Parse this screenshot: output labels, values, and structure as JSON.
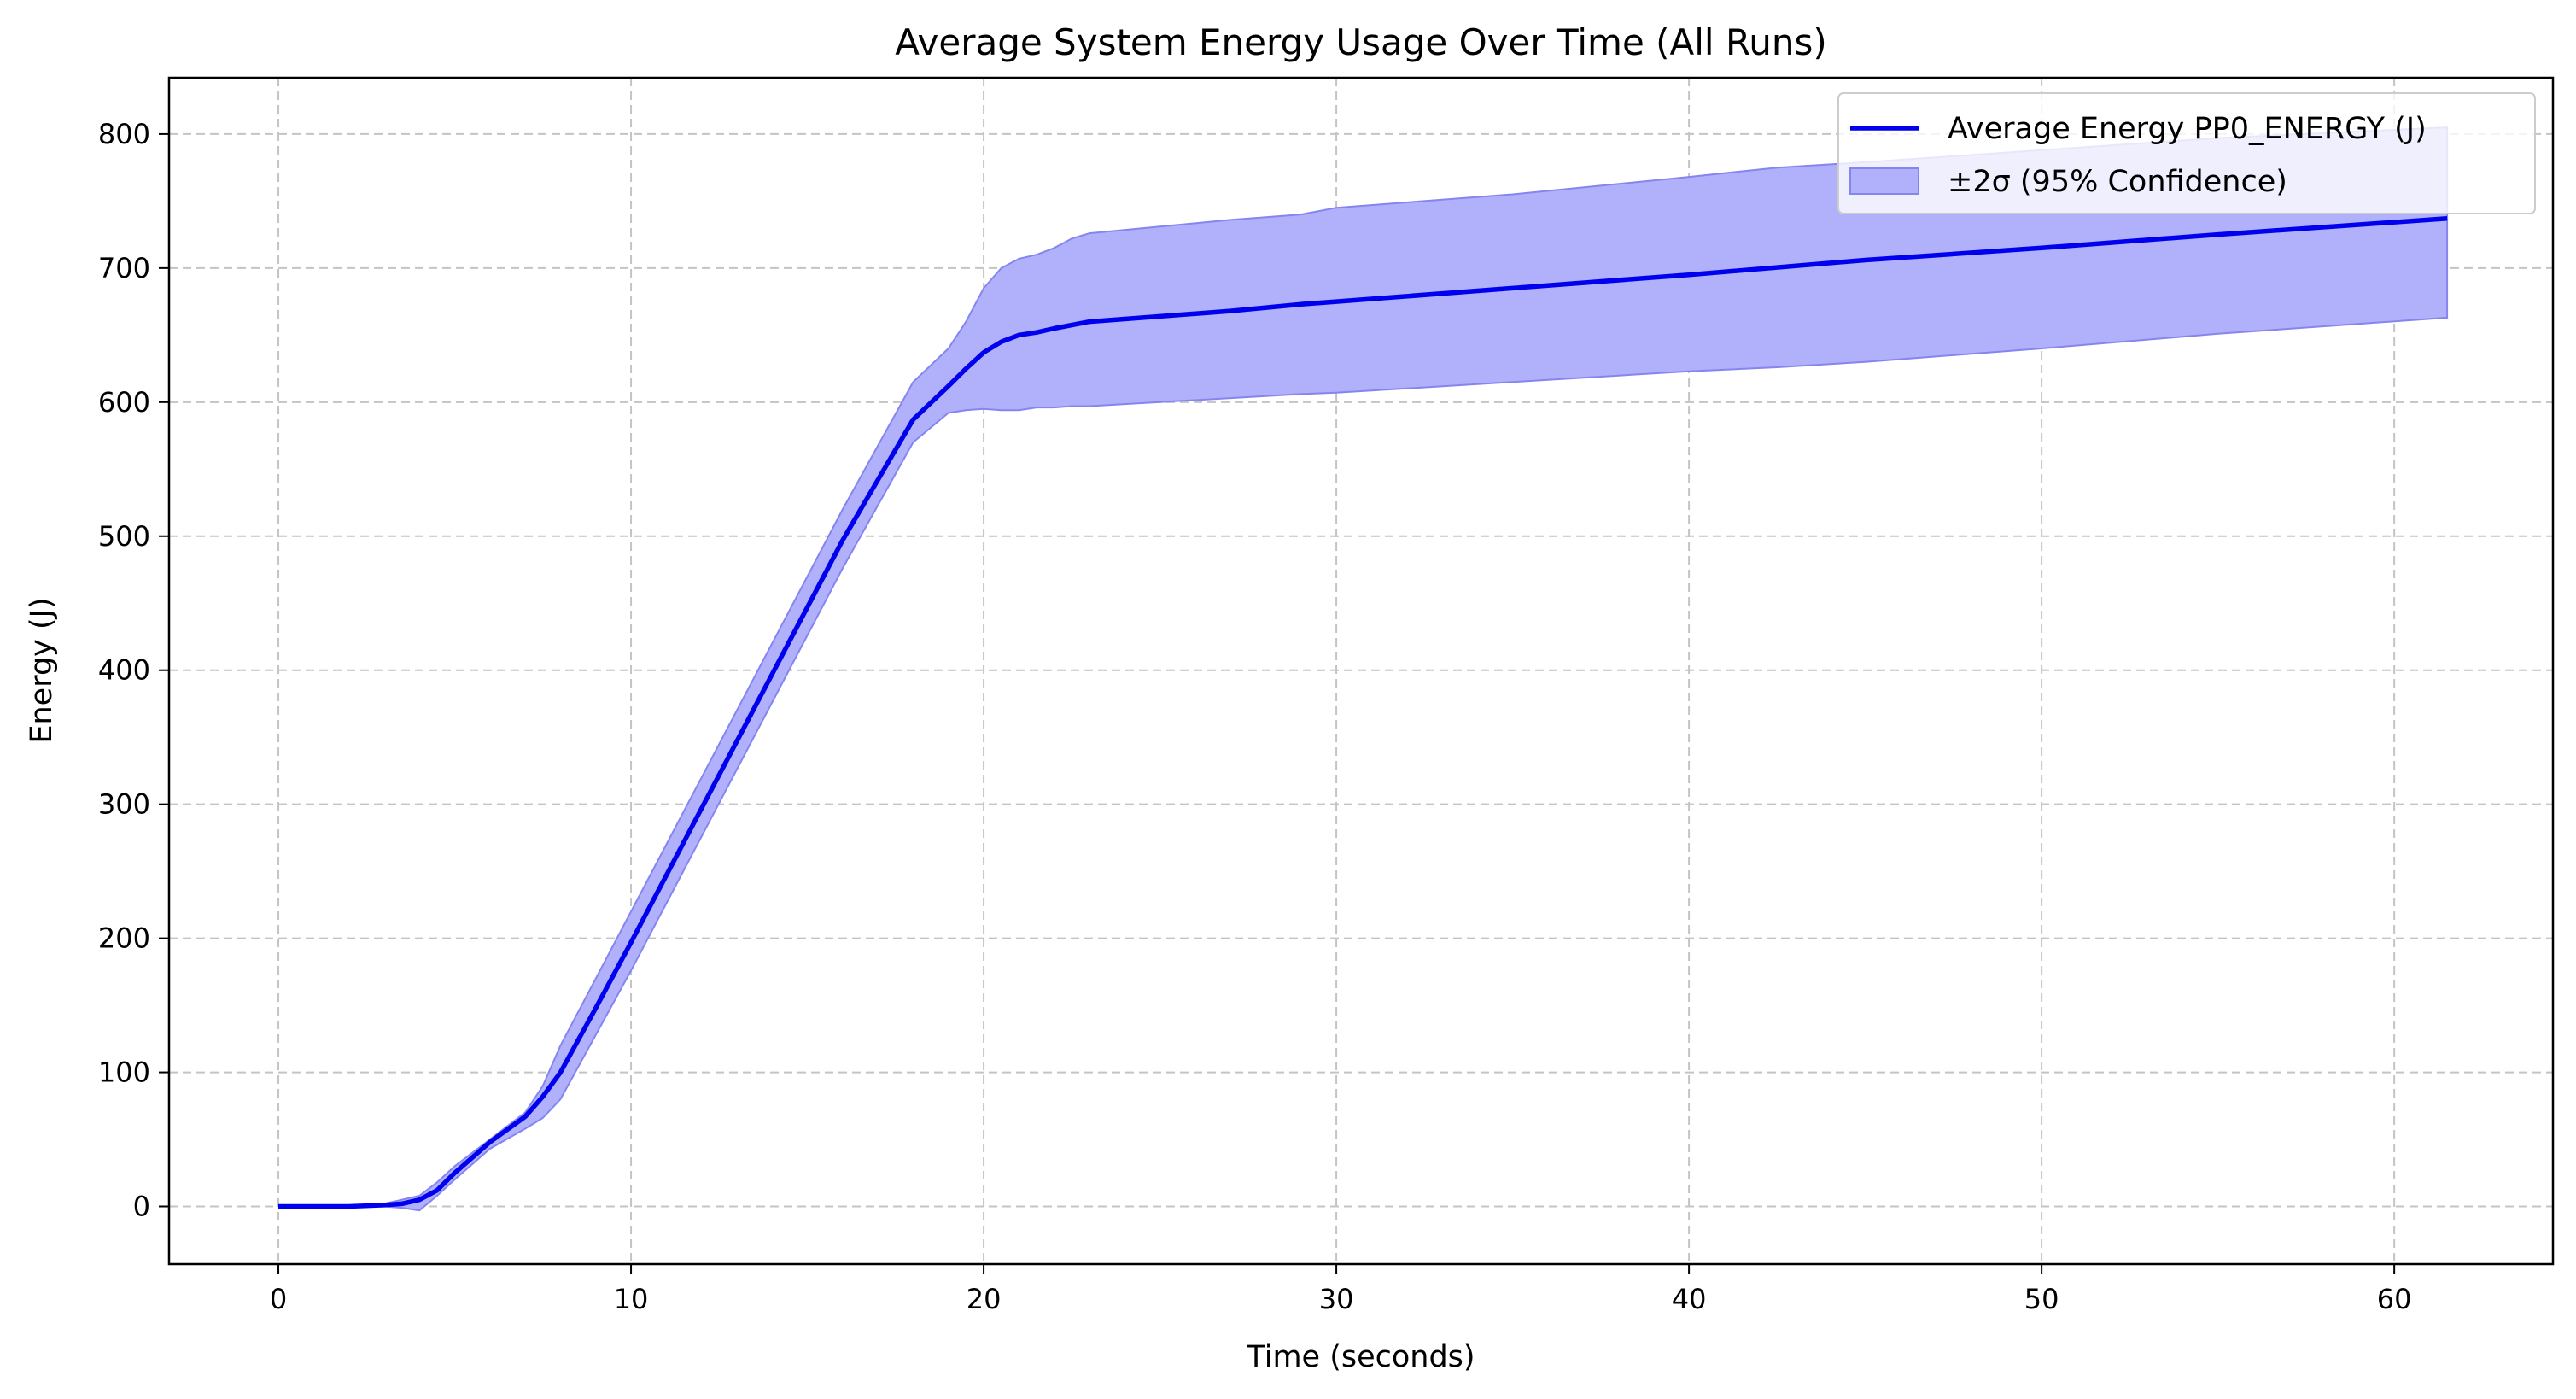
{
  "chart_data": {
    "type": "line",
    "title": "Average System Energy Usage Over Time (All Runs)",
    "xlabel": "Time (seconds)",
    "ylabel": "Energy (J)",
    "xlim": [
      -3.1,
      64.5
    ],
    "ylim": [
      -43,
      842
    ],
    "xticks": [
      0,
      10,
      20,
      30,
      40,
      50,
      60
    ],
    "yticks": [
      0,
      100,
      200,
      300,
      400,
      500,
      600,
      700,
      800
    ],
    "grid": true,
    "legend_position": "top-right",
    "colors": {
      "line": "#0000ee",
      "band_fill": "#b0b0fb",
      "band_edge": "#8585f0",
      "grid": "#c4c4c4"
    },
    "series": [
      {
        "name": "Average Energy PP0_ENERGY (J)",
        "kind": "line",
        "x": [
          0,
          2,
          3,
          3.5,
          4,
          4.5,
          5,
          6,
          7,
          7.5,
          8,
          9,
          10,
          12,
          14,
          16,
          18,
          19,
          19.5,
          20,
          20.5,
          21,
          21.5,
          22,
          23,
          25,
          27,
          29,
          30,
          35,
          40,
          45,
          50,
          55,
          61.5
        ],
        "y": [
          0,
          0,
          1,
          2,
          5,
          12,
          25,
          48,
          67,
          82,
          100,
          148,
          197,
          297,
          397,
          497,
          587,
          612,
          625,
          637,
          645,
          650,
          652,
          655,
          660,
          664,
          668,
          673,
          675,
          685,
          695,
          706,
          715,
          725,
          737
        ]
      },
      {
        "name": "±2σ (95% Confidence)",
        "kind": "band",
        "x": [
          0,
          2,
          3,
          3.5,
          4,
          4.5,
          5,
          6,
          7,
          7.5,
          8,
          9,
          10,
          12,
          14,
          16,
          18,
          19,
          19.5,
          20,
          20.5,
          21,
          21.5,
          22,
          22.5,
          23,
          25,
          27,
          29,
          30,
          35,
          40,
          42.5,
          45,
          50,
          55,
          61.5
        ],
        "upper": [
          0,
          0,
          2,
          5,
          8,
          18,
          30,
          50,
          70,
          90,
          120,
          170,
          220,
          320,
          420,
          520,
          615,
          640,
          660,
          685,
          700,
          707,
          710,
          715,
          722,
          726,
          731,
          736,
          740,
          745,
          755,
          768,
          775,
          779,
          788,
          797,
          805
        ],
        "lower": [
          0,
          0,
          0,
          -1,
          -3,
          8,
          20,
          43,
          58,
          66,
          80,
          128,
          176,
          276,
          376,
          476,
          570,
          592,
          594,
          595,
          594,
          594,
          596,
          596,
          597,
          597,
          600,
          603,
          606,
          607,
          615,
          623,
          626,
          630,
          640,
          651,
          663
        ]
      }
    ]
  }
}
